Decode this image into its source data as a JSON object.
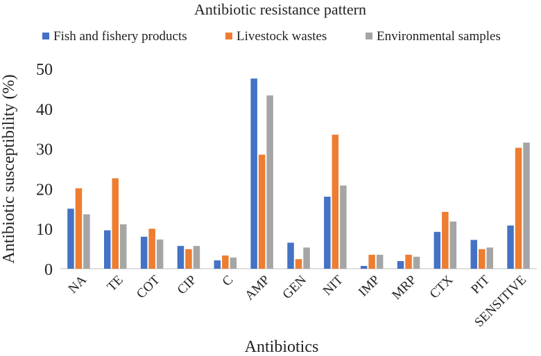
{
  "colors": {
    "series": [
      "#4472c4",
      "#ed7d31",
      "#a5a5a5"
    ],
    "axis": "#bfbfbf",
    "text": "#222222"
  },
  "chart_data": {
    "type": "bar",
    "title": "Antibiotic resistance pattern",
    "xlabel": "Antibiotics",
    "ylabel": "Antibiotic susceptibility (%)",
    "ylim": [
      0,
      50
    ],
    "yticks": [
      0,
      10,
      20,
      30,
      40,
      50
    ],
    "grid": false,
    "legend_position": "top",
    "categories": [
      "NA",
      "TE",
      "COT",
      "CIP",
      "C",
      "AMP",
      "GEN",
      "NIT",
      "IMP",
      "MRP",
      "CTX",
      "PIT",
      "SENSITIVE"
    ],
    "series": [
      {
        "name": "Fish and fishery products",
        "values": [
          15.0,
          9.6,
          8.0,
          5.7,
          2.1,
          47.5,
          6.5,
          18.0,
          0.7,
          1.9,
          9.2,
          7.2,
          10.8
        ]
      },
      {
        "name": "Livestock wastes",
        "values": [
          20.1,
          22.6,
          10.0,
          4.9,
          3.3,
          28.5,
          2.4,
          33.5,
          3.5,
          3.5,
          14.2,
          4.9,
          30.2
        ]
      },
      {
        "name": "Environmental samples",
        "values": [
          13.6,
          11.1,
          7.3,
          5.7,
          2.8,
          43.3,
          5.3,
          20.8,
          3.5,
          3.0,
          11.8,
          5.3,
          31.5
        ]
      }
    ]
  }
}
